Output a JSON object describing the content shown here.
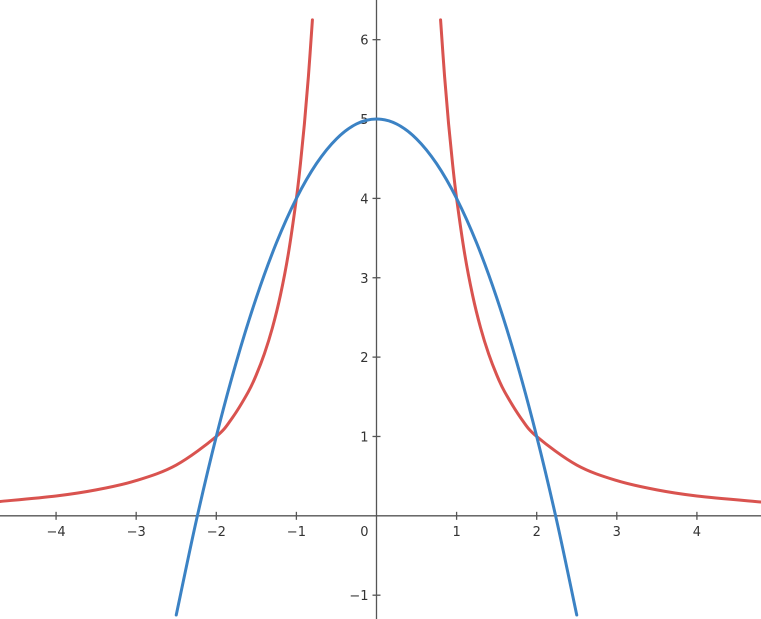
{
  "chart_data": {
    "type": "line",
    "title": "",
    "xlabel": "",
    "ylabel": "",
    "xlim": [
      -4.7,
      4.8
    ],
    "ylim": [
      -1.3,
      6.5
    ],
    "grid": false,
    "x_ticks": [
      -4,
      -3,
      -2,
      -1,
      1,
      2,
      3,
      4
    ],
    "x_tick_labels": [
      "−4",
      "−3",
      "−2",
      "−1",
      "1",
      "2",
      "3",
      "4"
    ],
    "y_ticks": [
      -1,
      1,
      2,
      3,
      4,
      5,
      6
    ],
    "y_tick_labels": [
      "−1",
      "1",
      "2",
      "3",
      "4",
      "5",
      "6"
    ],
    "origin_label": "0",
    "series": [
      {
        "color": "#d9534f",
        "x": [
          -4.7,
          -4,
          -3.5,
          -3,
          -2.5,
          -2,
          -1.8,
          -1.6,
          -1.5,
          -1.4,
          -1.3,
          -1.2,
          -1.1,
          -1,
          -0.95,
          -0.9,
          -0.85,
          -0.8,
          0.8,
          0.85,
          0.9,
          0.95,
          1,
          1.1,
          1.2,
          1.3,
          1.4,
          1.5,
          1.6,
          1.8,
          2,
          2.5,
          3,
          3.5,
          4,
          4.8
        ],
        "y": [
          0.181,
          0.25,
          0.327,
          0.444,
          0.64,
          1,
          1.235,
          1.563,
          1.778,
          2.041,
          2.367,
          2.778,
          3.306,
          4,
          4.432,
          4.938,
          5.536,
          6.25,
          6.25,
          5.536,
          4.938,
          4.432,
          4,
          3.306,
          2.778,
          2.367,
          2.041,
          1.778,
          1.563,
          1.235,
          1,
          0.64,
          0.444,
          0.327,
          0.25,
          0.174
        ]
      },
      {
        "color": "#3b82c4",
        "x": [
          -2.5,
          -2.25,
          -2,
          -1.75,
          -1.5,
          -1.25,
          -1,
          -0.75,
          -0.5,
          -0.25,
          0,
          0.25,
          0.5,
          0.75,
          1,
          1.25,
          1.5,
          1.75,
          2,
          2.25,
          2.5
        ],
        "y": [
          -1.25,
          -0.063,
          1,
          1.938,
          2.75,
          3.438,
          4,
          4.438,
          4.75,
          4.938,
          5,
          4.938,
          4.75,
          4.438,
          4,
          3.438,
          2.75,
          1.938,
          1,
          -0.063,
          -1.25
        ]
      }
    ]
  }
}
